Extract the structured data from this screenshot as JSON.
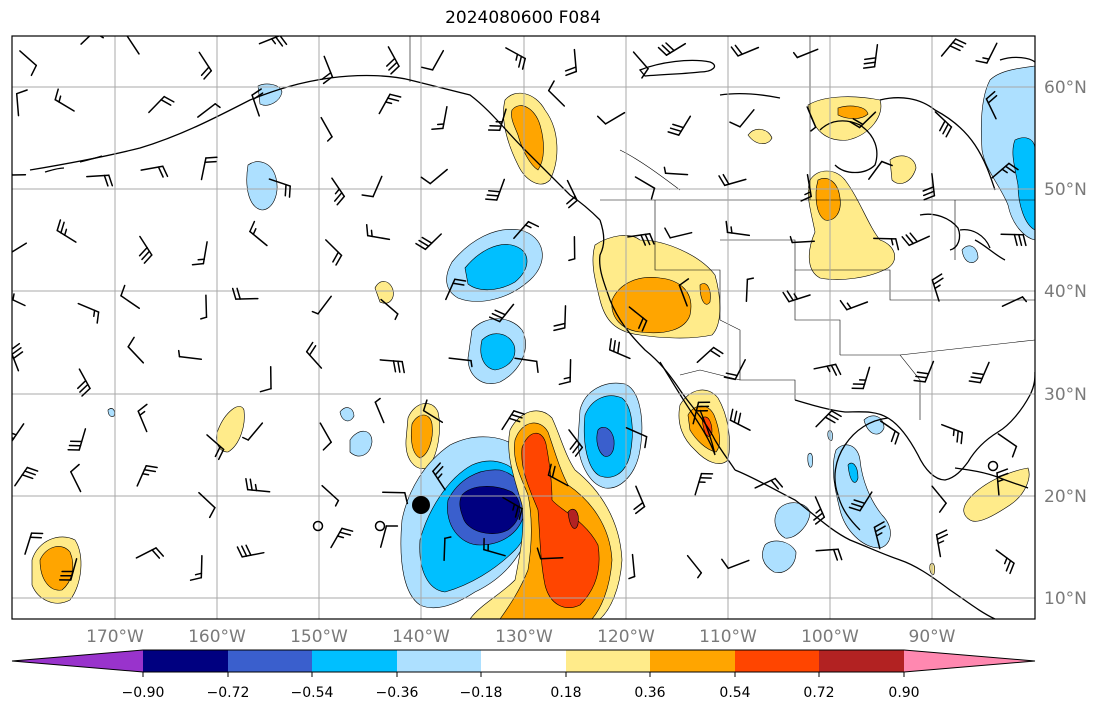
{
  "title": "2024080600 F084",
  "map": {
    "lat_ticks": [
      "60°N",
      "50°N",
      "40°N",
      "30°N",
      "20°N",
      "10°N"
    ],
    "lon_ticks": [
      "170°W",
      "160°W",
      "150°W",
      "140°W",
      "130°W",
      "120°W",
      "110°W",
      "100°W",
      "90°W"
    ],
    "gridlines": true,
    "tropical_cyclone_markers": 3
  },
  "colorbar": {
    "tick_labels": [
      "−0.90",
      "−0.72",
      "−0.54",
      "−0.36",
      "−0.18",
      "0.18",
      "0.36",
      "0.54",
      "0.72",
      "0.90"
    ],
    "colors": [
      "#9933cc",
      "#000080",
      "#3a5fcd",
      "#00bfff",
      "#ade0ff",
      "#ffffff",
      "#ffeb8a",
      "#ffa500",
      "#ff4500",
      "#b22222",
      "#ff88b0"
    ],
    "extend": "both"
  },
  "shading_colors": {
    "neg_light": "#ade0ff",
    "neg_mid": "#00bfff",
    "neg_strong": "#3a5fcd",
    "neg_extreme": "#000080",
    "pos_light": "#ffeb8a",
    "pos_mid": "#ffa500",
    "pos_strong": "#ff4500",
    "pos_extreme": "#b22222"
  }
}
